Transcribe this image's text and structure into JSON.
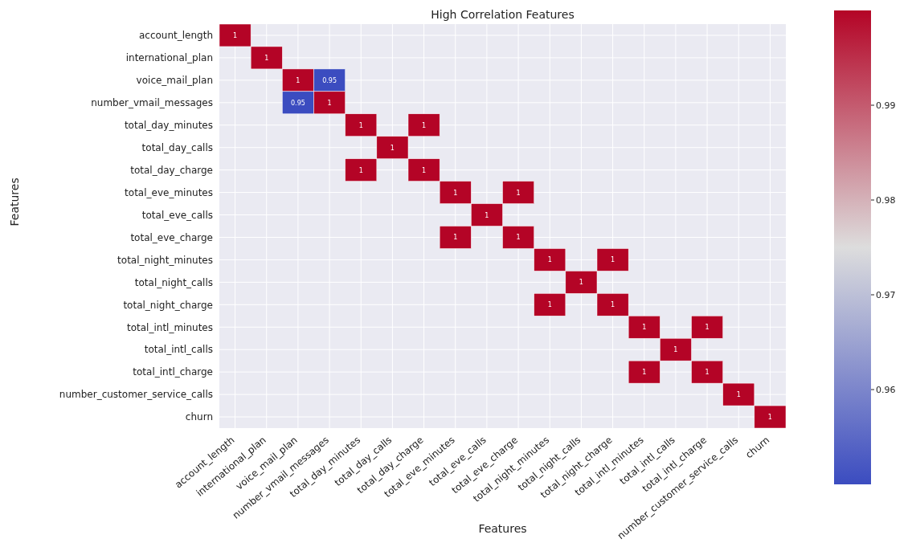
{
  "chart_data": {
    "type": "heatmap",
    "title": "High Correlation Features",
    "xlabel": "Features",
    "ylabel": "Features",
    "categories": [
      "account_length",
      "international_plan",
      "voice_mail_plan",
      "number_vmail_messages",
      "total_day_minutes",
      "total_day_calls",
      "total_day_charge",
      "total_eve_minutes",
      "total_eve_calls",
      "total_eve_charge",
      "total_night_minutes",
      "total_night_calls",
      "total_night_charge",
      "total_intl_minutes",
      "total_intl_calls",
      "total_intl_charge",
      "number_customer_service_calls",
      "churn"
    ],
    "y_categories": [
      "account_length",
      "international_plan",
      "voice_mail_plan",
      "number_vmail_messages",
      "total_day_minutes",
      "total_day_calls",
      "total_day_charge",
      "total_eve_minutes",
      "total_eve_calls",
      "total_eve_charge",
      "total_night_minutes",
      "total_night_calls",
      "total_night_charge",
      "total_intl_minutes",
      "total_intl_calls",
      "total_intl_charge",
      "number_customer_service_calls",
      "churn"
    ],
    "cells": [
      [
        1,
        null,
        null,
        null,
        null,
        null,
        null,
        null,
        null,
        null,
        null,
        null,
        null,
        null,
        null,
        null,
        null,
        null
      ],
      [
        null,
        1,
        null,
        null,
        null,
        null,
        null,
        null,
        null,
        null,
        null,
        null,
        null,
        null,
        null,
        null,
        null,
        null
      ],
      [
        null,
        null,
        1,
        0.95,
        null,
        null,
        null,
        null,
        null,
        null,
        null,
        null,
        null,
        null,
        null,
        null,
        null,
        null
      ],
      [
        null,
        null,
        0.95,
        1,
        null,
        null,
        null,
        null,
        null,
        null,
        null,
        null,
        null,
        null,
        null,
        null,
        null,
        null
      ],
      [
        null,
        null,
        null,
        null,
        1,
        null,
        1,
        null,
        null,
        null,
        null,
        null,
        null,
        null,
        null,
        null,
        null,
        null
      ],
      [
        null,
        null,
        null,
        null,
        null,
        1,
        null,
        null,
        null,
        null,
        null,
        null,
        null,
        null,
        null,
        null,
        null,
        null
      ],
      [
        null,
        null,
        null,
        null,
        1,
        null,
        1,
        null,
        null,
        null,
        null,
        null,
        null,
        null,
        null,
        null,
        null,
        null
      ],
      [
        null,
        null,
        null,
        null,
        null,
        null,
        null,
        1,
        null,
        1,
        null,
        null,
        null,
        null,
        null,
        null,
        null,
        null
      ],
      [
        null,
        null,
        null,
        null,
        null,
        null,
        null,
        null,
        1,
        null,
        null,
        null,
        null,
        null,
        null,
        null,
        null,
        null
      ],
      [
        null,
        null,
        null,
        null,
        null,
        null,
        null,
        1,
        null,
        1,
        null,
        null,
        null,
        null,
        null,
        null,
        null,
        null
      ],
      [
        null,
        null,
        null,
        null,
        null,
        null,
        null,
        null,
        null,
        null,
        1,
        null,
        1,
        null,
        null,
        null,
        null,
        null
      ],
      [
        null,
        null,
        null,
        null,
        null,
        null,
        null,
        null,
        null,
        null,
        null,
        1,
        null,
        null,
        null,
        null,
        null,
        null
      ],
      [
        null,
        null,
        null,
        null,
        null,
        null,
        null,
        null,
        null,
        null,
        1,
        null,
        1,
        null,
        null,
        null,
        null,
        null
      ],
      [
        null,
        null,
        null,
        null,
        null,
        null,
        null,
        null,
        null,
        null,
        null,
        null,
        null,
        1,
        null,
        1,
        null,
        null
      ],
      [
        null,
        null,
        null,
        null,
        null,
        null,
        null,
        null,
        null,
        null,
        null,
        null,
        null,
        null,
        1,
        null,
        null,
        null
      ],
      [
        null,
        null,
        null,
        null,
        null,
        null,
        null,
        null,
        null,
        null,
        null,
        null,
        null,
        1,
        null,
        1,
        null,
        null
      ],
      [
        null,
        null,
        null,
        null,
        null,
        null,
        null,
        null,
        null,
        null,
        null,
        null,
        null,
        null,
        null,
        null,
        1,
        null
      ],
      [
        null,
        null,
        null,
        null,
        null,
        null,
        null,
        null,
        null,
        null,
        null,
        null,
        null,
        null,
        null,
        null,
        null,
        1
      ]
    ],
    "clim": [
      0.95,
      1
    ],
    "cticks": [
      0.96,
      0.97,
      0.98,
      0.99
    ],
    "data_labels": true,
    "grid": true
  }
}
